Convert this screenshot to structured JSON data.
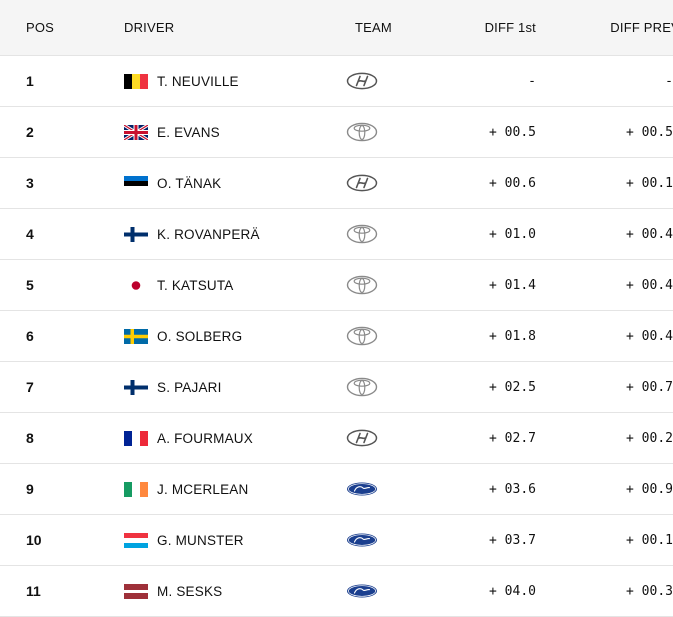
{
  "headers": {
    "pos": "POS",
    "driver": "DRIVER",
    "team": "TEAM",
    "diff_first": "DIFF 1st",
    "diff_prev": "DIFF PREV"
  },
  "rows": [
    {
      "pos": "1",
      "driver": "T. NEUVILLE",
      "flag": "belgium",
      "team_icon": "hyundai-logo-icon",
      "diff_first": "-",
      "diff_prev": "-"
    },
    {
      "pos": "2",
      "driver": "E. EVANS",
      "flag": "united-kingdom",
      "team_icon": "toyota-logo-icon",
      "diff_first": "+ 00.5",
      "diff_prev": "+ 00.5"
    },
    {
      "pos": "3",
      "driver": "O. TÄNAK",
      "flag": "estonia",
      "team_icon": "hyundai-logo-icon",
      "diff_first": "+ 00.6",
      "diff_prev": "+ 00.1"
    },
    {
      "pos": "4",
      "driver": "K. ROVANPERÄ",
      "flag": "finland",
      "team_icon": "toyota-logo-icon",
      "diff_first": "+ 01.0",
      "diff_prev": "+ 00.4"
    },
    {
      "pos": "5",
      "driver": "T. KATSUTA",
      "flag": "japan",
      "team_icon": "toyota-logo-icon",
      "diff_first": "+ 01.4",
      "diff_prev": "+ 00.4"
    },
    {
      "pos": "6",
      "driver": "O. SOLBERG",
      "flag": "sweden",
      "team_icon": "toyota-logo-icon",
      "diff_first": "+ 01.8",
      "diff_prev": "+ 00.4"
    },
    {
      "pos": "7",
      "driver": "S. PAJARI",
      "flag": "finland",
      "team_icon": "toyota-logo-icon",
      "diff_first": "+ 02.5",
      "diff_prev": "+ 00.7"
    },
    {
      "pos": "8",
      "driver": "A. FOURMAUX",
      "flag": "france",
      "team_icon": "hyundai-logo-icon",
      "diff_first": "+ 02.7",
      "diff_prev": "+ 00.2"
    },
    {
      "pos": "9",
      "driver": "J. MCERLEAN",
      "flag": "ireland",
      "team_icon": "ford-logo-icon",
      "diff_first": "+ 03.6",
      "diff_prev": "+ 00.9"
    },
    {
      "pos": "10",
      "driver": "G. MUNSTER",
      "flag": "luxembourg",
      "team_icon": "ford-logo-icon",
      "diff_first": "+ 03.7",
      "diff_prev": "+ 00.1"
    },
    {
      "pos": "11",
      "driver": "M. SESKS",
      "flag": "latvia",
      "team_icon": "ford-logo-icon",
      "diff_first": "+ 04.0",
      "diff_prev": "+ 00.3"
    }
  ]
}
